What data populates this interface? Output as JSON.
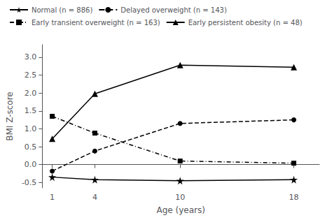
{
  "chart_data": {
    "type": "line",
    "xlabel": "Age (years)",
    "ylabel": "BMI Z-score",
    "x": [
      1,
      4,
      10,
      18
    ],
    "series": [
      {
        "name": "Normal (n = 886)",
        "values": [
          -0.35,
          -0.42,
          -0.45,
          -0.42
        ],
        "marker": "star",
        "line_style": "solid"
      },
      {
        "name": "Delayed overweight (n = 143)",
        "values": [
          -0.18,
          0.38,
          1.15,
          1.25
        ],
        "marker": "circle",
        "line_style": "dashed"
      },
      {
        "name": "Early transient overweight (n = 163)",
        "values": [
          1.35,
          0.88,
          0.1,
          0.04
        ],
        "marker": "square",
        "line_style": "dashdot"
      },
      {
        "name": "Early persistent obesity (n = 48)",
        "values": [
          0.72,
          1.98,
          2.78,
          2.72
        ],
        "marker": "triangle",
        "line_style": "solid"
      }
    ],
    "color": "black",
    "xlim": [
      0.3,
      19.8
    ],
    "ylim": [
      -0.65,
      3.35
    ],
    "xticks": [
      1,
      4,
      10,
      18
    ],
    "yticks": [
      -0.5,
      {
        "value": 0,
        "label": "0.0"
      },
      0.5,
      {
        "value": 1,
        "label": "1.0"
      },
      1.5,
      {
        "value": 2,
        "label": "2.0"
      },
      2.5,
      {
        "value": 3,
        "label": "3.0"
      }
    ],
    "grid": false,
    "legend": "upper left"
  }
}
